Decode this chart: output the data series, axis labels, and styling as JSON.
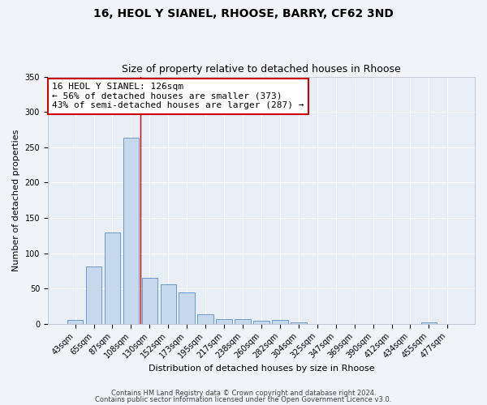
{
  "title1": "16, HEOL Y SIANEL, RHOOSE, BARRY, CF62 3ND",
  "title2": "Size of property relative to detached houses in Rhoose",
  "xlabel": "Distribution of detached houses by size in Rhoose",
  "ylabel": "Number of detached properties",
  "bar_labels": [
    "43sqm",
    "65sqm",
    "87sqm",
    "108sqm",
    "130sqm",
    "152sqm",
    "173sqm",
    "195sqm",
    "217sqm",
    "238sqm",
    "260sqm",
    "282sqm",
    "304sqm",
    "325sqm",
    "347sqm",
    "369sqm",
    "390sqm",
    "412sqm",
    "434sqm",
    "455sqm",
    "477sqm"
  ],
  "bar_values": [
    6,
    81,
    129,
    263,
    65,
    56,
    45,
    14,
    7,
    7,
    4,
    5,
    2,
    0,
    0,
    0,
    0,
    0,
    0,
    2,
    0
  ],
  "bar_color": "#c5d8ec",
  "bar_edge_color": "#5b8db8",
  "plot_bg_color": "#e8eef5",
  "fig_bg_color": "#f0f4f8",
  "ylim": [
    0,
    350
  ],
  "yticks": [
    0,
    50,
    100,
    150,
    200,
    250,
    300,
    350
  ],
  "red_line_x": 3.5,
  "annotation_title": "16 HEOL Y SIANEL: 126sqm",
  "annotation_line1": "← 56% of detached houses are smaller (373)",
  "annotation_line2": "43% of semi-detached houses are larger (287) →",
  "footer1": "Contains HM Land Registry data © Crown copyright and database right 2024.",
  "footer2": "Contains public sector information licensed under the Open Government Licence v3.0.",
  "title1_fontsize": 10,
  "title2_fontsize": 9,
  "axis_label_fontsize": 8,
  "tick_fontsize": 7,
  "annotation_fontsize": 8,
  "footer_fontsize": 6
}
